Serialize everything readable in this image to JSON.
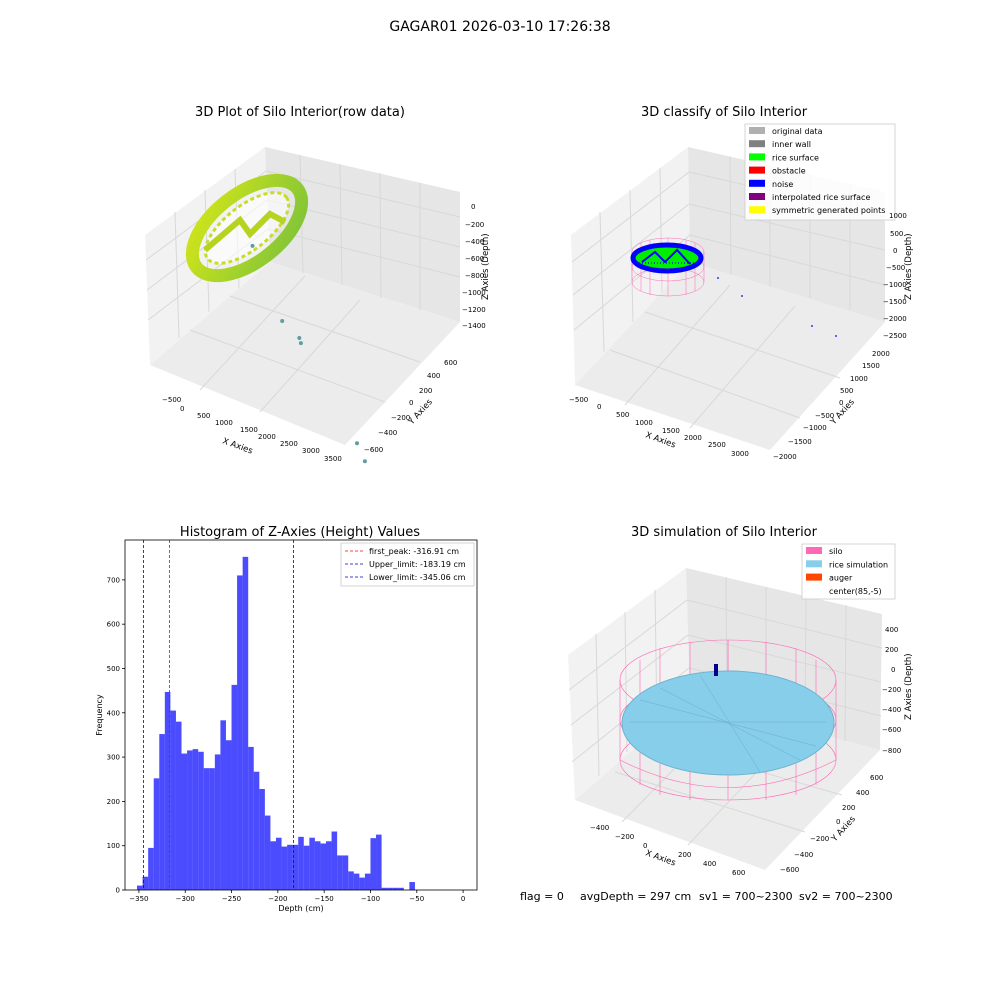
{
  "figure": {
    "suptitle": "GAGAR01 2026-03-10 17:26:38",
    "status_line": {
      "flag": "flag = 0",
      "avg_depth": "avgDepth = 297 cm",
      "sv1": "sv1 = 700~2300",
      "sv2": "sv2 = 700~2300"
    }
  },
  "chart_data": [
    {
      "type": "scatter",
      "projection": "3d",
      "title": "3D Plot of Silo Interior(row data)",
      "xlabel": "X Axies",
      "ylabel": "Y Axies",
      "zlabel": "Z Axies (Depth)",
      "x_ticks": [
        "−500",
        "0",
        "500",
        "1000",
        "1500",
        "2000",
        "2500",
        "3000",
        "3500"
      ],
      "y_ticks": [
        "−600",
        "−400",
        "−200",
        "0",
        "200",
        "400",
        "600"
      ],
      "z_ticks": [
        "0",
        "−200",
        "−400",
        "−600",
        "−800",
        "−1000",
        "−1200",
        "−1400"
      ],
      "grid": true,
      "colors": {
        "points": "#9acd32",
        "points_edge": "#d4e619",
        "outliers": "#5f9ea0"
      },
      "outlier_points": [
        {
          "x": 1000,
          "y": 250,
          "z": -560
        },
        {
          "x": 1600,
          "y": 0,
          "z": -900
        },
        {
          "x": 1900,
          "y": -50,
          "z": -950
        },
        {
          "x": 1950,
          "y": -100,
          "z": -960
        },
        {
          "x": 3000,
          "y": -400,
          "z": -1380
        },
        {
          "x": 3200,
          "y": -550,
          "z": -1420
        }
      ]
    },
    {
      "type": "scatter",
      "projection": "3d",
      "title": "3D classify of Silo Interior",
      "xlabel": "X Axies",
      "ylabel": "Y Axies",
      "zlabel": "Z Axies (Depth)",
      "x_ticks": [
        "−500",
        "0",
        "500",
        "1000",
        "1500",
        "2000",
        "2500",
        "3000"
      ],
      "y_ticks": [
        "−2000",
        "−1500",
        "−1000",
        "−500",
        "0",
        "500",
        "1000",
        "1500",
        "2000"
      ],
      "z_ticks": [
        "1000",
        "500",
        "0",
        "−500",
        "−1000",
        "−1500",
        "−2000",
        "−2500"
      ],
      "grid": true,
      "legend_position": "top-right",
      "legend": [
        {
          "label": "original data",
          "color": "#b0b0b0"
        },
        {
          "label": "inner wall",
          "color": "#808080"
        },
        {
          "label": "rice surface",
          "color": "#00ff00"
        },
        {
          "label": "obstacle",
          "color": "#ff0000"
        },
        {
          "label": "noise",
          "color": "#0000ff"
        },
        {
          "label": "interpolated rice surface",
          "color": "#800080"
        },
        {
          "label": "symmetric generated points",
          "color": "#ffff00"
        }
      ],
      "wire_color": "#ff69b4"
    },
    {
      "type": "bar",
      "title": "Histogram of Z-Axies (Height) Values",
      "xlabel": "Depth (cm)",
      "ylabel": "Frequency",
      "xlim": [
        -365,
        15
      ],
      "ylim": [
        0,
        790
      ],
      "x_ticks": [
        -350,
        -300,
        -250,
        -200,
        -150,
        -100,
        -50,
        0
      ],
      "y_ticks": [
        0,
        100,
        200,
        300,
        400,
        500,
        600,
        700
      ],
      "bin_width": 6,
      "bin_start": -352,
      "bar_color": "#0000ff",
      "values": [
        10,
        30,
        95,
        252,
        352,
        447,
        405,
        380,
        308,
        315,
        318,
        312,
        275,
        275,
        306,
        383,
        338,
        463,
        710,
        752,
        323,
        267,
        228,
        168,
        110,
        118,
        98,
        102,
        102,
        120,
        100,
        118,
        110,
        105,
        110,
        132,
        78,
        78,
        42,
        37,
        28,
        37,
        117,
        125,
        5,
        5,
        5,
        5,
        0,
        18
      ],
      "grid": false,
      "legend_position": "top-right",
      "lines": [
        {
          "label": "first_peak: -316.91 cm",
          "x": -316.91,
          "color": "#ff0000"
        },
        {
          "label": "Upper_limit: -183.19 cm",
          "x": -183.19,
          "color": "#0000cd"
        },
        {
          "label": "Lower_limit: -345.06 cm",
          "x": -345.06,
          "color": "#0000cd"
        }
      ]
    },
    {
      "type": "scatter",
      "projection": "3d",
      "title": "3D simulation of Silo Interior",
      "xlabel": "X Axies",
      "ylabel": "Y Axies",
      "zlabel": "Z Axies (Depth)",
      "x_ticks": [
        "−400",
        "−200",
        "0",
        "200",
        "400",
        "600"
      ],
      "y_ticks": [
        "−600",
        "−400",
        "−200",
        "0",
        "200",
        "400",
        "600"
      ],
      "z_ticks": [
        "400",
        "200",
        "0",
        "−200",
        "−400",
        "−600",
        "−800"
      ],
      "grid": true,
      "legend_position": "top-right",
      "legend": [
        {
          "label": "silo",
          "color": "#ff69b4"
        },
        {
          "label": "rice simulation",
          "color": "#87ceeb"
        },
        {
          "label": "auger",
          "color": "#ff4500"
        },
        {
          "label": "center(85,-5)",
          "color": ""
        }
      ]
    }
  ]
}
